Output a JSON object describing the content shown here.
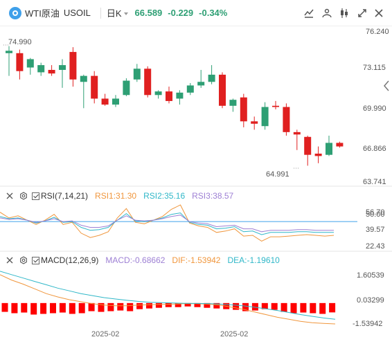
{
  "header": {
    "symbol_name": "WTI原油",
    "symbol_code": "USOIL",
    "period": "日K",
    "last_price": "66.589",
    "change": "-0.229",
    "change_pct": "-0.34%",
    "colors": {
      "up": "#e02020",
      "down": "#2e9f74",
      "accent": "#3fa0ea"
    }
  },
  "toolbar": {
    "icons": [
      "drawing-tools-icon",
      "indicator-settings-icon",
      "candle-style-icon",
      "fullscreen-icon",
      "close-icon"
    ]
  },
  "price_axis": {
    "ticks": [
      "76.240",
      "73.115",
      "69.990",
      "66.866",
      "63.741"
    ],
    "high_label": "74.990",
    "low_label": "64.991"
  },
  "sidebar": {
    "collapse_icon": "chevron-left-icon"
  },
  "rsi": {
    "name": "RSI(7,14,21)",
    "rsi1": "RSI1:31.30",
    "rsi2": "RSI2:35.16",
    "rsi3": "RSI3:38.57",
    "ticks": [
      "56.70",
      "50.00",
      "39.57",
      "22.43"
    ],
    "colors": {
      "rsi1": "#f0963c",
      "rsi2": "#2fb7c8",
      "rsi3": "#9d7fd4",
      "level": "#3fa0ea"
    }
  },
  "macd": {
    "name": "MACD(12,26,9)",
    "macd_val": "MACD:-0.68662",
    "dif_val": "DIF:-1.53942",
    "dea_val": "DEA:-1.19610",
    "ticks": [
      "1.60539",
      "0.03299",
      "-1.53942"
    ],
    "colors": {
      "macd": "#9d7fd4",
      "dif": "#f0963c",
      "dea": "#2fb7c8",
      "bar": "#ff0000"
    }
  },
  "x_axis": {
    "labels": [
      "2025-02",
      "2025-02"
    ]
  },
  "chart_data": [
    {
      "type": "candlestick",
      "title": "WTI原油 USOIL 日K",
      "ylim": [
        63.741,
        76.24
      ],
      "candles": [
        {
          "o": 74.4,
          "h": 74.99,
          "l": 72.5,
          "c": 74.6
        },
        {
          "o": 74.4,
          "h": 74.7,
          "l": 72.2,
          "c": 72.9
        },
        {
          "o": 73.2,
          "h": 74.0,
          "l": 72.6,
          "c": 73.9
        },
        {
          "o": 72.8,
          "h": 73.6,
          "l": 72.5,
          "c": 73.4
        },
        {
          "o": 73.0,
          "h": 73.4,
          "l": 72.5,
          "c": 72.7
        },
        {
          "o": 73.0,
          "h": 73.9,
          "l": 71.5,
          "c": 73.4
        },
        {
          "o": 74.5,
          "h": 74.9,
          "l": 71.6,
          "c": 72.2
        },
        {
          "o": 72.0,
          "h": 72.6,
          "l": 69.8,
          "c": 72.5
        },
        {
          "o": 72.5,
          "h": 72.9,
          "l": 70.2,
          "c": 70.6
        },
        {
          "o": 70.6,
          "h": 71.0,
          "l": 70.0,
          "c": 70.1
        },
        {
          "o": 70.1,
          "h": 70.9,
          "l": 69.9,
          "c": 70.6
        },
        {
          "o": 70.9,
          "h": 72.3,
          "l": 70.8,
          "c": 72.1
        },
        {
          "o": 72.2,
          "h": 73.5,
          "l": 72.0,
          "c": 73.1
        },
        {
          "o": 73.1,
          "h": 73.3,
          "l": 70.7,
          "c": 70.9
        },
        {
          "o": 70.9,
          "h": 71.3,
          "l": 70.6,
          "c": 71.2
        },
        {
          "o": 71.2,
          "h": 71.6,
          "l": 70.2,
          "c": 70.4
        },
        {
          "o": 70.6,
          "h": 71.3,
          "l": 70.1,
          "c": 71.1
        },
        {
          "o": 71.1,
          "h": 71.9,
          "l": 70.9,
          "c": 71.7
        },
        {
          "o": 71.7,
          "h": 73.0,
          "l": 71.5,
          "c": 72.0
        },
        {
          "o": 72.0,
          "h": 73.4,
          "l": 71.8,
          "c": 72.6
        },
        {
          "o": 72.6,
          "h": 72.8,
          "l": 69.8,
          "c": 70.0
        },
        {
          "o": 70.0,
          "h": 70.6,
          "l": 69.5,
          "c": 70.5
        },
        {
          "o": 70.7,
          "h": 71.0,
          "l": 68.2,
          "c": 68.7
        },
        {
          "o": 68.7,
          "h": 69.1,
          "l": 68.0,
          "c": 68.5
        },
        {
          "o": 68.3,
          "h": 70.3,
          "l": 68.0,
          "c": 69.9
        },
        {
          "o": 70.0,
          "h": 70.4,
          "l": 69.7,
          "c": 69.9
        },
        {
          "o": 69.9,
          "h": 70.2,
          "l": 67.5,
          "c": 67.8
        },
        {
          "o": 67.8,
          "h": 68.0,
          "l": 66.3,
          "c": 67.6
        },
        {
          "o": 67.4,
          "h": 67.5,
          "l": 64.991,
          "c": 65.9
        },
        {
          "o": 66.0,
          "h": 66.6,
          "l": 65.2,
          "c": 65.8
        },
        {
          "o": 65.9,
          "h": 67.5,
          "l": 65.8,
          "c": 66.9
        },
        {
          "o": 66.9,
          "h": 67.0,
          "l": 66.5,
          "c": 66.6
        }
      ]
    },
    {
      "type": "line",
      "title": "RSI(7,14,21)",
      "ylim": [
        10,
        75
      ],
      "level": 50.0,
      "series": [
        {
          "name": "RSI1",
          "values": [
            63,
            55,
            58,
            52,
            46,
            52,
            60,
            46,
            49,
            34,
            28,
            31,
            36,
            55,
            68,
            49,
            47,
            52,
            57,
            67,
            73,
            48,
            44,
            42,
            35,
            37,
            40,
            30,
            31,
            23,
            29,
            29,
            30,
            31,
            32,
            31,
            30,
            31
          ]
        },
        {
          "name": "RSI2",
          "values": [
            57,
            54,
            55,
            52,
            48,
            51,
            56,
            49,
            50,
            42,
            38,
            39,
            42,
            52,
            61,
            51,
            50,
            52,
            55,
            60,
            62,
            49,
            46,
            45,
            40,
            41,
            43,
            36,
            37,
            32,
            35,
            35,
            35,
            36,
            36,
            35,
            35,
            35
          ]
        },
        {
          "name": "RSI3",
          "values": [
            55,
            53,
            54,
            52,
            49,
            51,
            54,
            50,
            51,
            45,
            42,
            42,
            44,
            52,
            58,
            52,
            51,
            52,
            54,
            57,
            59,
            50,
            48,
            47,
            43,
            44,
            45,
            40,
            40,
            36,
            38,
            38,
            38,
            39,
            39,
            38,
            38,
            38
          ]
        }
      ]
    },
    {
      "type": "bar+line",
      "title": "MACD(12,26,9)",
      "ylim": [
        -1.9,
        2.6
      ],
      "bars": [
        -0.65,
        -0.75,
        -0.7,
        -0.85,
        -0.8,
        -0.75,
        -0.7,
        -0.8,
        -0.75,
        -0.6,
        -0.65,
        -0.6,
        -0.55,
        -0.6,
        -0.45,
        -0.4,
        -0.35,
        -0.3,
        -0.3,
        -0.25,
        -0.3,
        -0.35,
        -0.4,
        -0.45,
        -0.5,
        -0.6,
        -0.55,
        -0.45,
        -0.5,
        -0.65,
        -0.75,
        -0.7,
        -0.75,
        -0.8,
        -0.69
      ],
      "series": [
        {
          "name": "DIF",
          "values": [
            2.1,
            1.7,
            1.4,
            1.05,
            0.7,
            0.45,
            0.25,
            0.1,
            -0.05,
            -0.15,
            -0.2,
            -0.2,
            -0.15,
            -0.12,
            -0.1,
            -0.08,
            -0.05,
            -0.05,
            -0.08,
            -0.15,
            -0.3,
            -0.45,
            -0.65,
            -0.85,
            -1.05,
            -1.2,
            -1.35,
            -1.45,
            -1.5,
            -1.54
          ]
        },
        {
          "name": "DEA",
          "values": [
            2.35,
            2.1,
            1.85,
            1.6,
            1.35,
            1.1,
            0.9,
            0.7,
            0.55,
            0.4,
            0.3,
            0.2,
            0.12,
            0.06,
            0.03,
            0.0,
            -0.02,
            -0.03,
            -0.04,
            -0.07,
            -0.13,
            -0.2,
            -0.3,
            -0.42,
            -0.55,
            -0.7,
            -0.85,
            -0.98,
            -1.1,
            -1.2
          ]
        }
      ]
    }
  ]
}
